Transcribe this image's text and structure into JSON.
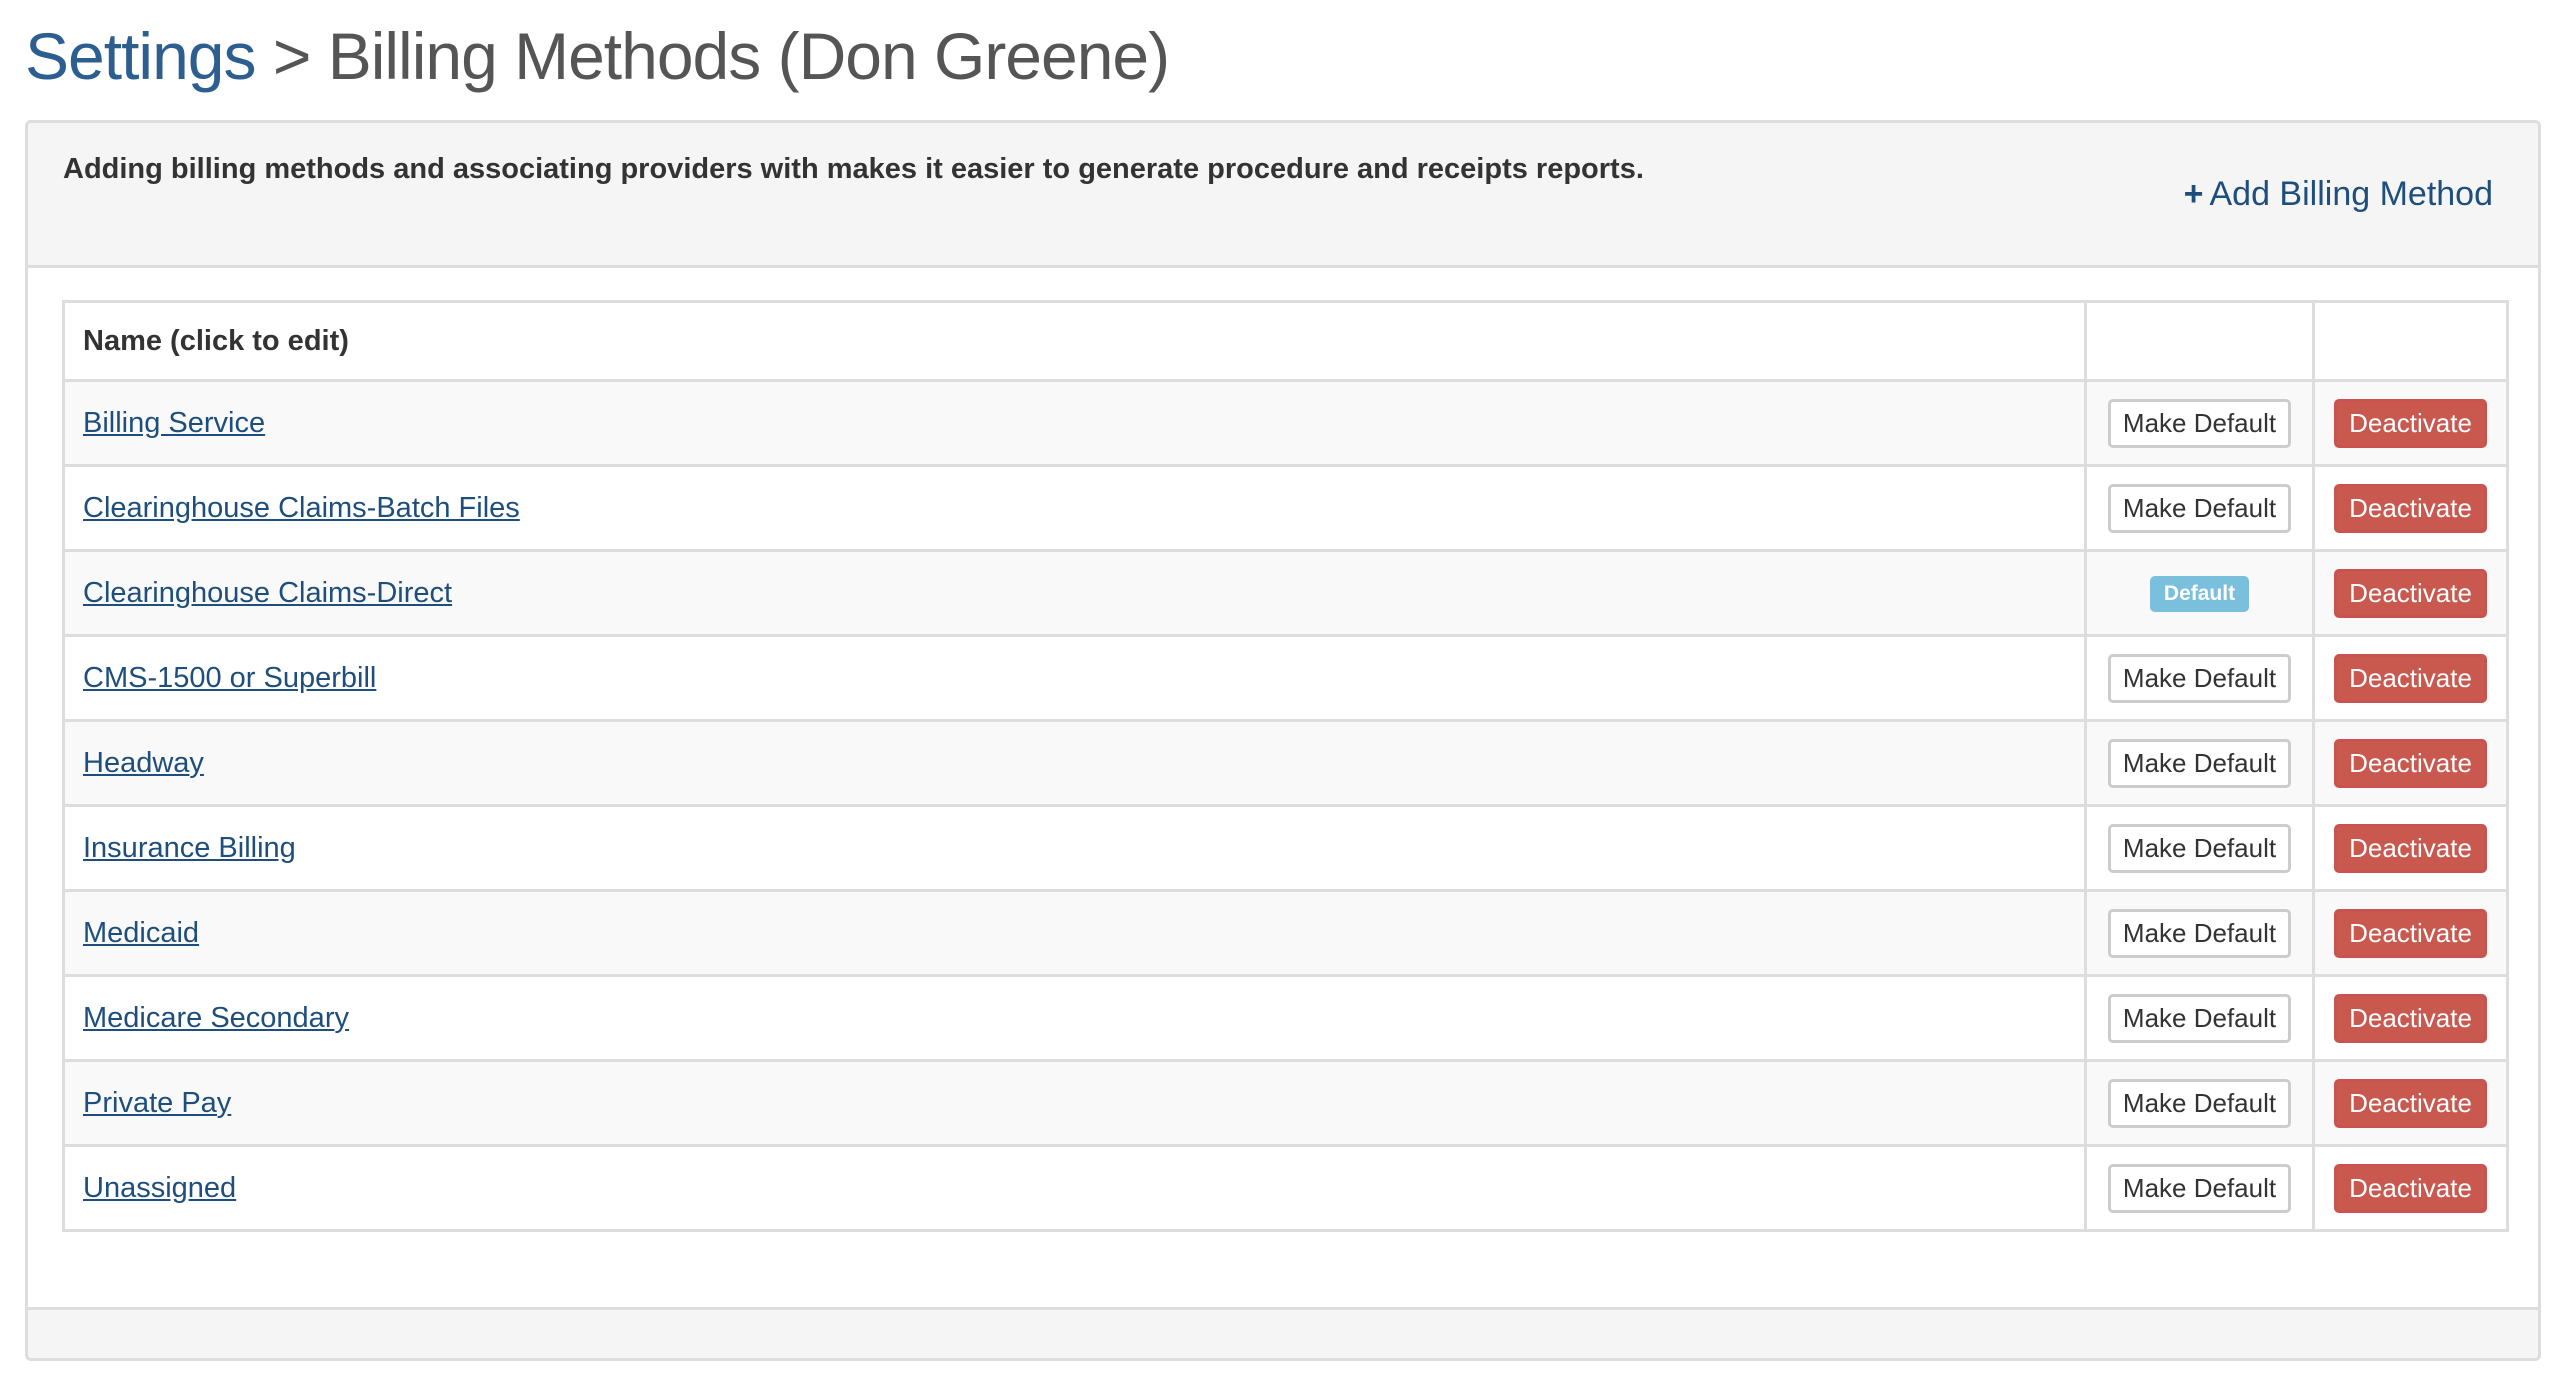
{
  "header": {
    "breadcrumb_root": "Settings",
    "separator": " > ",
    "title": "Billing Methods (Don Greene)"
  },
  "panel": {
    "description": "Adding billing methods and associating providers with makes it easier to generate procedure and receipts reports.",
    "add_icon": "plus-icon",
    "add_label": "Add Billing Method"
  },
  "table": {
    "columns": [
      "Name (click to edit)",
      "",
      ""
    ],
    "make_default_label": "Make Default",
    "default_badge_label": "Default",
    "deactivate_label": "Deactivate",
    "rows": [
      {
        "name": "Billing Service",
        "is_default": false
      },
      {
        "name": "Clearinghouse Claims-Batch Files",
        "is_default": false
      },
      {
        "name": "Clearinghouse Claims-Direct",
        "is_default": true
      },
      {
        "name": "CMS-1500 or Superbill",
        "is_default": false
      },
      {
        "name": "Headway",
        "is_default": false
      },
      {
        "name": "Insurance Billing",
        "is_default": false
      },
      {
        "name": "Medicaid",
        "is_default": false
      },
      {
        "name": "Medicare Secondary",
        "is_default": false
      },
      {
        "name": "Private Pay",
        "is_default": false
      },
      {
        "name": "Unassigned",
        "is_default": false
      }
    ]
  },
  "colors": {
    "link": "#1e4e7c",
    "danger": "#c9584f",
    "info_badge": "#7abfdc",
    "panel_bg": "#f5f5f5"
  }
}
